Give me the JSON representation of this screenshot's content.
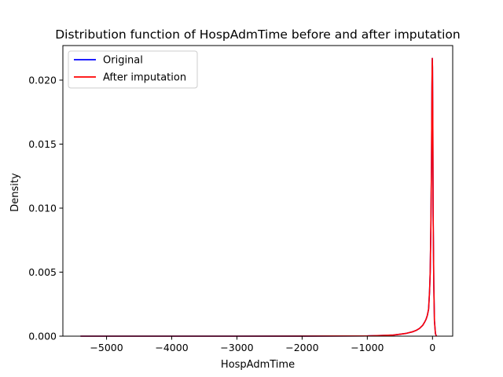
{
  "chart_data": {
    "type": "line",
    "title": "Distribution function of HospAdmTime before and after imputation",
    "xlabel": "HospAdmTime",
    "ylabel": "Density",
    "xlim": [
      -5670,
      310
    ],
    "ylim": [
      0,
      0.0227
    ],
    "xticks": [
      -5000,
      -4000,
      -3000,
      -2000,
      -1000,
      0
    ],
    "xtick_labels": [
      "−5000",
      "−4000",
      "−3000",
      "−2000",
      "−1000",
      "0"
    ],
    "yticks": [
      0.0,
      0.005,
      0.01,
      0.015,
      0.02
    ],
    "ytick_labels": [
      "0.000",
      "0.005",
      "0.010",
      "0.015",
      "0.020"
    ],
    "grid": false,
    "legend_position": "upper-left",
    "series": [
      {
        "name": "Original",
        "color": "#0000ff",
        "x": [
          -5400,
          -3000,
          -1500,
          -1000,
          -800,
          -600,
          -500,
          -400,
          -300,
          -250,
          -200,
          -150,
          -120,
          -100,
          -80,
          -60,
          -45,
          -35,
          -25,
          -15,
          -8,
          -3,
          0,
          5,
          10,
          20,
          30,
          45,
          60
        ],
        "y": [
          0.0,
          0.0,
          1e-05,
          2e-05,
          5e-05,
          9e-05,
          0.00015,
          0.00022,
          0.00035,
          0.00045,
          0.0006,
          0.00085,
          0.0011,
          0.0013,
          0.0016,
          0.0021,
          0.0035,
          0.005,
          0.0085,
          0.0135,
          0.0195,
          0.0217,
          0.021,
          0.0165,
          0.0095,
          0.004,
          0.0012,
          0.0002,
          0.0
        ]
      },
      {
        "name": "After imputation",
        "color": "#ff0000",
        "x": [
          -5400,
          -3000,
          -1500,
          -1000,
          -800,
          -600,
          -500,
          -400,
          -300,
          -250,
          -200,
          -150,
          -120,
          -100,
          -80,
          -60,
          -45,
          -35,
          -25,
          -15,
          -8,
          -3,
          0,
          5,
          10,
          20,
          30,
          45,
          60
        ],
        "y": [
          0.0,
          0.0,
          1e-05,
          2e-05,
          5e-05,
          9e-05,
          0.00015,
          0.00022,
          0.00035,
          0.00045,
          0.0006,
          0.00085,
          0.0011,
          0.0013,
          0.0016,
          0.0021,
          0.0035,
          0.005,
          0.0085,
          0.0135,
          0.0195,
          0.0217,
          0.021,
          0.0165,
          0.0095,
          0.004,
          0.0012,
          0.0002,
          0.0
        ]
      }
    ]
  }
}
